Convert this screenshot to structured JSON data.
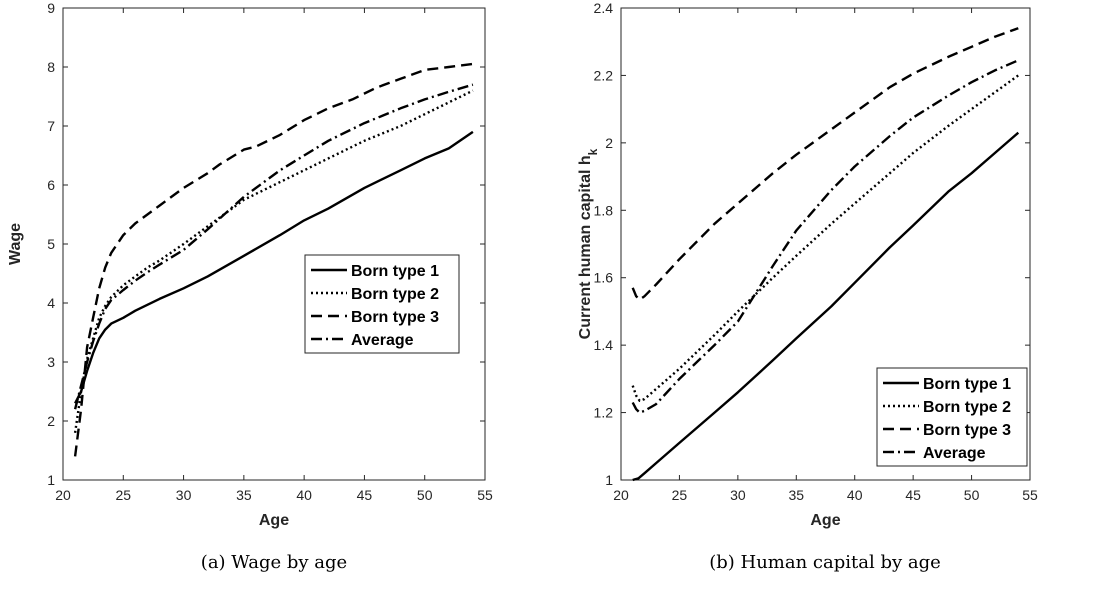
{
  "chart_data": [
    {
      "type": "line",
      "caption": "(a) Wage by age",
      "xlabel": "Age",
      "ylabel": "Wage",
      "xlim": [
        20,
        55
      ],
      "ylim": [
        1,
        9
      ],
      "xticks": [
        20,
        25,
        30,
        35,
        40,
        45,
        50,
        55
      ],
      "yticks": [
        1,
        2,
        3,
        4,
        5,
        6,
        7,
        8,
        9
      ],
      "grid": false,
      "legend_position": "center-right",
      "series": [
        {
          "name": "Born type 1",
          "dash": "solid",
          "x": [
            21,
            21.5,
            22,
            22.5,
            23,
            23.5,
            24,
            25,
            26,
            27,
            28,
            30,
            32,
            35,
            38,
            40,
            42,
            45,
            48,
            50,
            52,
            54
          ],
          "y": [
            2.3,
            2.5,
            2.85,
            3.15,
            3.4,
            3.55,
            3.65,
            3.75,
            3.87,
            3.97,
            4.07,
            4.25,
            4.45,
            4.8,
            5.15,
            5.4,
            5.6,
            5.95,
            6.25,
            6.45,
            6.62,
            6.9
          ]
        },
        {
          "name": "Born type 2",
          "dash": "dotted",
          "x": [
            21,
            21.5,
            22,
            22.5,
            23,
            23.5,
            24,
            25,
            26,
            27,
            28,
            30,
            32,
            35,
            38,
            40,
            42,
            45,
            48,
            50,
            52,
            54
          ],
          "y": [
            1.8,
            2.5,
            3.05,
            3.4,
            3.75,
            3.95,
            4.1,
            4.3,
            4.45,
            4.6,
            4.72,
            5.0,
            5.3,
            5.75,
            6.05,
            6.25,
            6.45,
            6.75,
            7.0,
            7.2,
            7.4,
            7.6
          ]
        },
        {
          "name": "Born type 3",
          "dash": "dashed",
          "x": [
            21,
            21.5,
            22,
            22.5,
            23,
            23.5,
            24,
            25,
            26,
            27,
            28,
            30,
            32,
            33,
            35,
            36,
            38,
            40,
            42,
            44,
            46,
            48,
            50,
            52,
            54
          ],
          "y": [
            1.4,
            2.2,
            3.25,
            3.75,
            4.25,
            4.6,
            4.85,
            5.15,
            5.35,
            5.5,
            5.65,
            5.95,
            6.2,
            6.35,
            6.6,
            6.65,
            6.85,
            7.1,
            7.3,
            7.45,
            7.65,
            7.8,
            7.95,
            8.0,
            8.05
          ]
        },
        {
          "name": "Average",
          "dash": "dashdot",
          "x": [
            21,
            21.5,
            22,
            22.5,
            23,
            23.5,
            24,
            25,
            26,
            27,
            28,
            30,
            32,
            35,
            38,
            40,
            42,
            45,
            48,
            50,
            52,
            54
          ],
          "y": [
            2.2,
            2.6,
            3.0,
            3.35,
            3.65,
            3.9,
            4.05,
            4.22,
            4.38,
            4.52,
            4.65,
            4.9,
            5.25,
            5.8,
            6.25,
            6.5,
            6.75,
            7.05,
            7.3,
            7.45,
            7.58,
            7.7
          ]
        }
      ]
    },
    {
      "type": "line",
      "caption": "(b) Human capital by age",
      "xlabel": "Age",
      "ylabel": "Current human capital h",
      "ylabel_subscript": "k",
      "xlim": [
        20,
        55
      ],
      "ylim": [
        1,
        2.4
      ],
      "xticks": [
        20,
        25,
        30,
        35,
        40,
        45,
        50,
        55
      ],
      "yticks": [
        1,
        1.2,
        1.4,
        1.6,
        1.8,
        2,
        2.2,
        2.4
      ],
      "grid": false,
      "legend_position": "bottom-right",
      "series": [
        {
          "name": "Born type 1",
          "dash": "solid",
          "x": [
            21,
            21.5,
            22,
            23,
            25,
            28,
            30,
            33,
            35,
            38,
            40,
            43,
            45,
            48,
            50,
            52,
            54
          ],
          "y": [
            1.0,
            1.005,
            1.02,
            1.05,
            1.11,
            1.2,
            1.26,
            1.355,
            1.42,
            1.515,
            1.585,
            1.69,
            1.755,
            1.855,
            1.91,
            1.97,
            2.03
          ]
        },
        {
          "name": "Born type 2",
          "dash": "dotted",
          "x": [
            21,
            21.3,
            21.6,
            22,
            23,
            25,
            28,
            30,
            33,
            35,
            38,
            40,
            43,
            45,
            48,
            50,
            52,
            54
          ],
          "y": [
            1.28,
            1.25,
            1.235,
            1.24,
            1.27,
            1.33,
            1.43,
            1.5,
            1.6,
            1.665,
            1.76,
            1.82,
            1.91,
            1.97,
            2.05,
            2.1,
            2.15,
            2.2
          ]
        },
        {
          "name": "Born type 3",
          "dash": "dashed",
          "x": [
            21,
            21.3,
            21.6,
            22,
            23,
            25,
            28,
            30,
            33,
            35,
            38,
            40,
            43,
            45,
            48,
            50,
            52,
            54
          ],
          "y": [
            1.57,
            1.545,
            1.535,
            1.545,
            1.58,
            1.655,
            1.76,
            1.82,
            1.91,
            1.965,
            2.04,
            2.09,
            2.165,
            2.205,
            2.255,
            2.285,
            2.315,
            2.34
          ]
        },
        {
          "name": "Average",
          "dash": "dashdot",
          "x": [
            21,
            21.3,
            21.6,
            22,
            23,
            25,
            28,
            30,
            33,
            35,
            38,
            40,
            43,
            45,
            48,
            50,
            52,
            54
          ],
          "y": [
            1.23,
            1.21,
            1.2,
            1.205,
            1.225,
            1.3,
            1.4,
            1.47,
            1.635,
            1.74,
            1.86,
            1.93,
            2.02,
            2.075,
            2.14,
            2.18,
            2.215,
            2.245
          ]
        }
      ]
    }
  ]
}
